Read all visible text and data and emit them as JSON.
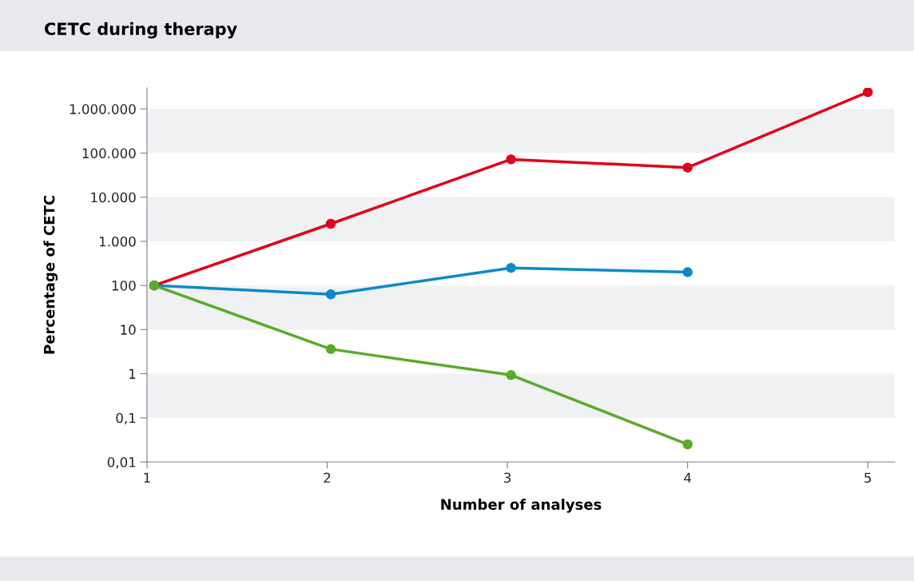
{
  "chart_data": {
    "type": "line",
    "title": "CETC during therapy",
    "xlabel": "Number of analyses",
    "ylabel": "Percentage of CETC",
    "log": "y",
    "marker": "circle",
    "line_style": "solid",
    "xlim": [
      1,
      5.15
    ],
    "xticks": [
      1,
      2,
      3,
      4,
      5
    ],
    "ylim": [
      0.01,
      3000000
    ],
    "yticks": [
      {
        "value": 0.01,
        "label": "0,01"
      },
      {
        "value": 0.1,
        "label": "0,1"
      },
      1,
      10,
      100,
      {
        "value": 1000,
        "label": "1.000"
      },
      {
        "value": 10000,
        "label": "10.000"
      },
      {
        "value": 100000,
        "label": "100.000"
      },
      {
        "value": 1000000,
        "label": "1.000.000"
      }
    ],
    "bands": [
      {
        "axis": "y",
        "from": 0.1,
        "to": 1,
        "color": "#f0f1f3"
      },
      {
        "axis": "y",
        "from": 10,
        "to": 100,
        "color": "#f0f1f3"
      },
      {
        "axis": "y",
        "from": 1000,
        "to": 10000,
        "color": "#f0f1f3"
      },
      {
        "axis": "y",
        "from": 100000,
        "to": 1000000,
        "color": "#f0f1f3"
      }
    ],
    "series": [
      {
        "color": "#e2001a",
        "x": [
          1.04,
          2.02,
          3.02,
          4.0,
          5.0
        ],
        "values": [
          100,
          2500,
          72000,
          47000,
          2400000
        ]
      },
      {
        "color": "#0a8ac8",
        "x": [
          1.04,
          2.02,
          3.02,
          4.0
        ],
        "values": [
          100,
          63,
          250,
          200
        ]
      },
      {
        "color": "#5aab2a",
        "x": [
          1.04,
          2.02,
          3.02,
          4.0
        ],
        "values": [
          100,
          3.6,
          0.93,
          0.025
        ]
      }
    ]
  }
}
